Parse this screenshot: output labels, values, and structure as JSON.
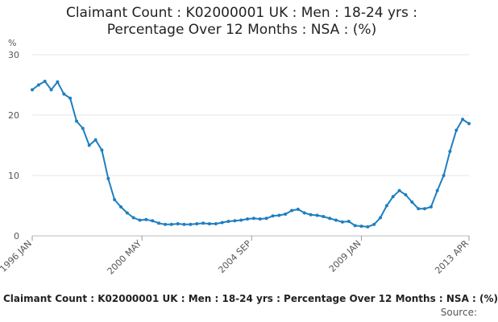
{
  "chart_data": {
    "type": "line",
    "title_lines": [
      "Claimant Count : K02000001 UK : Men : 18-24 yrs :",
      "Percentage Over 12 Months : NSA : (%)"
    ],
    "yunit": "%",
    "ylim": [
      0,
      30
    ],
    "yticks": [
      "0",
      "10",
      "20",
      "30"
    ],
    "xlim": [
      "1996-01",
      "2013-04"
    ],
    "xticks": [
      {
        "label": "1996 JAN",
        "date": "1996-01"
      },
      {
        "label": "2000 MAY",
        "date": "2000-05"
      },
      {
        "label": "2004 SEP",
        "date": "2004-09"
      },
      {
        "label": "2009 JAN",
        "date": "2009-01"
      },
      {
        "label": "2013 APR",
        "date": "2013-04"
      }
    ],
    "grid": "horizontal",
    "line_color": "#1f7fbf",
    "series": [
      {
        "x": [
          "1996-01",
          "1996-04",
          "1996-07",
          "1996-10",
          "1997-01",
          "1997-04",
          "1997-07",
          "1997-10",
          "1998-01",
          "1998-04",
          "1998-07",
          "1998-10",
          "1999-01",
          "1999-04",
          "1999-07",
          "1999-10",
          "2000-01",
          "2000-04",
          "2000-07",
          "2000-10",
          "2001-01",
          "2001-04",
          "2001-07",
          "2001-10",
          "2002-01",
          "2002-04",
          "2002-07",
          "2002-10",
          "2003-01",
          "2003-04",
          "2003-07",
          "2003-10",
          "2004-01",
          "2004-04",
          "2004-07",
          "2004-10",
          "2005-01",
          "2005-04",
          "2005-07",
          "2005-10",
          "2006-01",
          "2006-04",
          "2006-07",
          "2006-10",
          "2007-01",
          "2007-04",
          "2007-07",
          "2007-10",
          "2008-01",
          "2008-04",
          "2008-07",
          "2008-10",
          "2009-01",
          "2009-04",
          "2009-07",
          "2009-10",
          "2010-01",
          "2010-04",
          "2010-07",
          "2010-10",
          "2011-01",
          "2011-04",
          "2011-07",
          "2011-10",
          "2012-01",
          "2012-04",
          "2012-07",
          "2012-10",
          "2013-01",
          "2013-04"
        ],
        "values": [
          24.2,
          25.0,
          25.6,
          24.2,
          25.5,
          23.5,
          22.8,
          19.0,
          17.8,
          15.0,
          15.9,
          14.2,
          9.5,
          6.0,
          4.8,
          3.8,
          3.0,
          2.6,
          2.7,
          2.5,
          2.1,
          1.9,
          1.9,
          2.0,
          1.9,
          1.9,
          2.0,
          2.1,
          2.0,
          2.0,
          2.2,
          2.4,
          2.5,
          2.6,
          2.8,
          2.9,
          2.8,
          2.9,
          3.3,
          3.4,
          3.6,
          4.2,
          4.4,
          3.8,
          3.5,
          3.4,
          3.2,
          2.9,
          2.6,
          2.3,
          2.4,
          1.7,
          1.6,
          1.5,
          1.9,
          3.0,
          5.0,
          6.5,
          7.5,
          6.8,
          5.6,
          4.5,
          4.5,
          4.8,
          7.5,
          10.0,
          14.0,
          17.5,
          19.3,
          18.6
        ]
      }
    ]
  },
  "footer": "Claimant Count : K02000001 UK : Men : 18-24 yrs : Percentage Over 12 Months : NSA : (%)",
  "source": "Source:"
}
